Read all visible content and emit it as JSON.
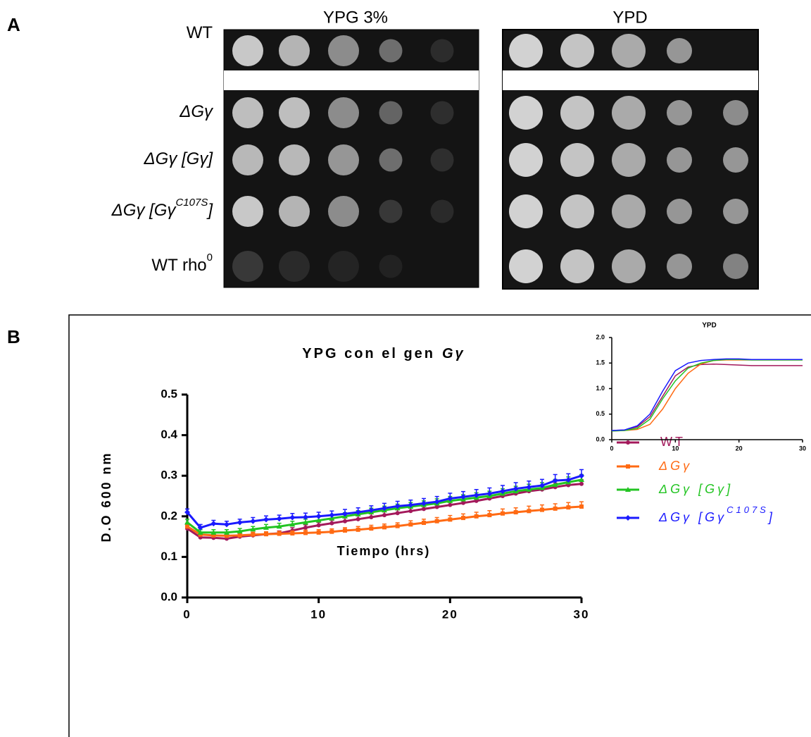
{
  "panel_a": {
    "label": "A",
    "plates": [
      "YPG 3%",
      "YPD"
    ],
    "strains": [
      {
        "text": "WT"
      },
      {
        "text": "ΔGγ"
      },
      {
        "text": "ΔGγ [Gγ]"
      },
      {
        "text": "ΔGγ [Gγ",
        "sup": "C107S",
        "end": "]"
      },
      {
        "text": "WT rho",
        "sup": "0"
      }
    ]
  },
  "panel_b_label": "B",
  "chart_data": [
    {
      "type": "line",
      "title": "YPG con el gen",
      "title_italic": "Gγ",
      "x_label": "Tiempo (hrs)",
      "y_label": "D.O 600 nm",
      "x": [
        0,
        1,
        2,
        3,
        4,
        5,
        6,
        7,
        8,
        9,
        10,
        11,
        12,
        13,
        14,
        15,
        16,
        17,
        18,
        19,
        20,
        21,
        22,
        23,
        24,
        25,
        26,
        27,
        28,
        29,
        30
      ],
      "xlim": [
        0,
        30
      ],
      "xticks": [
        0,
        10,
        20,
        30
      ],
      "ylim": [
        0,
        0.5
      ],
      "yticks": [
        {
          "value": 0,
          "label": "0.0"
        },
        0.1,
        0.2,
        0.3,
        0.4,
        0.5
      ],
      "series": [
        {
          "name": "WT",
          "color": "#a3195b",
          "marker": "circle",
          "values": [
            0.17,
            0.148,
            0.147,
            0.145,
            0.15,
            0.153,
            0.156,
            0.158,
            0.165,
            0.172,
            0.178,
            0.183,
            0.188,
            0.193,
            0.198,
            0.203,
            0.208,
            0.213,
            0.218,
            0.223,
            0.228,
            0.233,
            0.238,
            0.244,
            0.25,
            0.256,
            0.262,
            0.266,
            0.272,
            0.277,
            0.28
          ],
          "errors": [
            0.008,
            0.006,
            0.006,
            0.006,
            0.006,
            0.006,
            0.006,
            0.006,
            0.007,
            0.007,
            0.007,
            0.007,
            0.008,
            0.008,
            0.008,
            0.008,
            0.008,
            0.008,
            0.009,
            0.009,
            0.009,
            0.009,
            0.009,
            0.01,
            0.01,
            0.01,
            0.01,
            0.01,
            0.01,
            0.01,
            0.01
          ]
        },
        {
          "name": "ΔGγ",
          "color": "#ff6a13",
          "marker": "square",
          "values": [
            0.175,
            0.155,
            0.153,
            0.152,
            0.153,
            0.155,
            0.156,
            0.157,
            0.158,
            0.159,
            0.16,
            0.162,
            0.165,
            0.167,
            0.17,
            0.173,
            0.176,
            0.18,
            0.184,
            0.188,
            0.192,
            0.196,
            0.2,
            0.203,
            0.207,
            0.21,
            0.213,
            0.216,
            0.219,
            0.222,
            0.224
          ],
          "errors": [
            0.008,
            0.006,
            0.006,
            0.006,
            0.006,
            0.006,
            0.006,
            0.006,
            0.006,
            0.007,
            0.007,
            0.007,
            0.007,
            0.008,
            0.008,
            0.008,
            0.008,
            0.009,
            0.009,
            0.009,
            0.01,
            0.01,
            0.01,
            0.011,
            0.011,
            0.011,
            0.012,
            0.012,
            0.012,
            0.012,
            0.012
          ]
        },
        {
          "name": "ΔGγ [Gγ]",
          "color": "#22c422",
          "marker": "triangle",
          "values": [
            0.185,
            0.16,
            0.16,
            0.16,
            0.163,
            0.168,
            0.172,
            0.175,
            0.18,
            0.185,
            0.19,
            0.195,
            0.2,
            0.205,
            0.21,
            0.215,
            0.22,
            0.224,
            0.228,
            0.232,
            0.238,
            0.242,
            0.246,
            0.25,
            0.256,
            0.262,
            0.266,
            0.27,
            0.278,
            0.284,
            0.29
          ],
          "errors": [
            0.008,
            0.007,
            0.007,
            0.007,
            0.007,
            0.007,
            0.008,
            0.008,
            0.008,
            0.008,
            0.009,
            0.009,
            0.009,
            0.009,
            0.01,
            0.01,
            0.01,
            0.01,
            0.01,
            0.011,
            0.011,
            0.011,
            0.012,
            0.012,
            0.012,
            0.012,
            0.013,
            0.013,
            0.013,
            0.013,
            0.013
          ]
        },
        {
          "name": "ΔGγ [Gγ",
          "name_sup": "C107S",
          "name_end": "]",
          "color": "#1a1aff",
          "marker": "diamond",
          "values": [
            0.21,
            0.172,
            0.182,
            0.18,
            0.185,
            0.188,
            0.192,
            0.194,
            0.197,
            0.198,
            0.2,
            0.203,
            0.206,
            0.21,
            0.215,
            0.22,
            0.225,
            0.228,
            0.232,
            0.236,
            0.244,
            0.248,
            0.252,
            0.256,
            0.262,
            0.268,
            0.272,
            0.276,
            0.288,
            0.29,
            0.3
          ],
          "errors": [
            0.008,
            0.008,
            0.008,
            0.008,
            0.008,
            0.009,
            0.009,
            0.009,
            0.01,
            0.01,
            0.01,
            0.01,
            0.011,
            0.011,
            0.011,
            0.012,
            0.012,
            0.012,
            0.012,
            0.013,
            0.013,
            0.013,
            0.014,
            0.014,
            0.014,
            0.015,
            0.015,
            0.015,
            0.015,
            0.015,
            0.015
          ]
        }
      ]
    },
    {
      "type": "line",
      "title": "YPD",
      "x": [
        0,
        2,
        4,
        6,
        8,
        10,
        12,
        14,
        16,
        18,
        20,
        22,
        24,
        26,
        28,
        30
      ],
      "xlim": [
        0,
        30
      ],
      "xticks": [
        0,
        10,
        20,
        30
      ],
      "ylim": [
        0,
        2
      ],
      "yticks": [
        {
          "value": 0,
          "label": "0.0"
        },
        0.5,
        {
          "value": 1,
          "label": "1.0"
        },
        1.5,
        {
          "value": 2,
          "label": "2.0"
        }
      ],
      "series": [
        {
          "color": "#a3195b",
          "values": [
            0.18,
            0.19,
            0.25,
            0.45,
            0.85,
            1.25,
            1.42,
            1.47,
            1.48,
            1.47,
            1.46,
            1.45,
            1.45,
            1.45,
            1.45,
            1.45
          ]
        },
        {
          "color": "#ff6a13",
          "values": [
            0.17,
            0.18,
            0.2,
            0.3,
            0.6,
            1.0,
            1.3,
            1.48,
            1.55,
            1.56,
            1.56,
            1.56,
            1.56,
            1.56,
            1.56,
            1.56
          ]
        },
        {
          "color": "#22c422",
          "values": [
            0.17,
            0.18,
            0.22,
            0.4,
            0.8,
            1.15,
            1.4,
            1.5,
            1.55,
            1.57,
            1.57,
            1.56,
            1.56,
            1.56,
            1.56,
            1.56
          ]
        },
        {
          "color": "#1a1aff",
          "values": [
            0.18,
            0.19,
            0.27,
            0.5,
            0.95,
            1.35,
            1.5,
            1.55,
            1.57,
            1.58,
            1.58,
            1.57,
            1.57,
            1.57,
            1.57,
            1.57
          ]
        }
      ]
    }
  ]
}
